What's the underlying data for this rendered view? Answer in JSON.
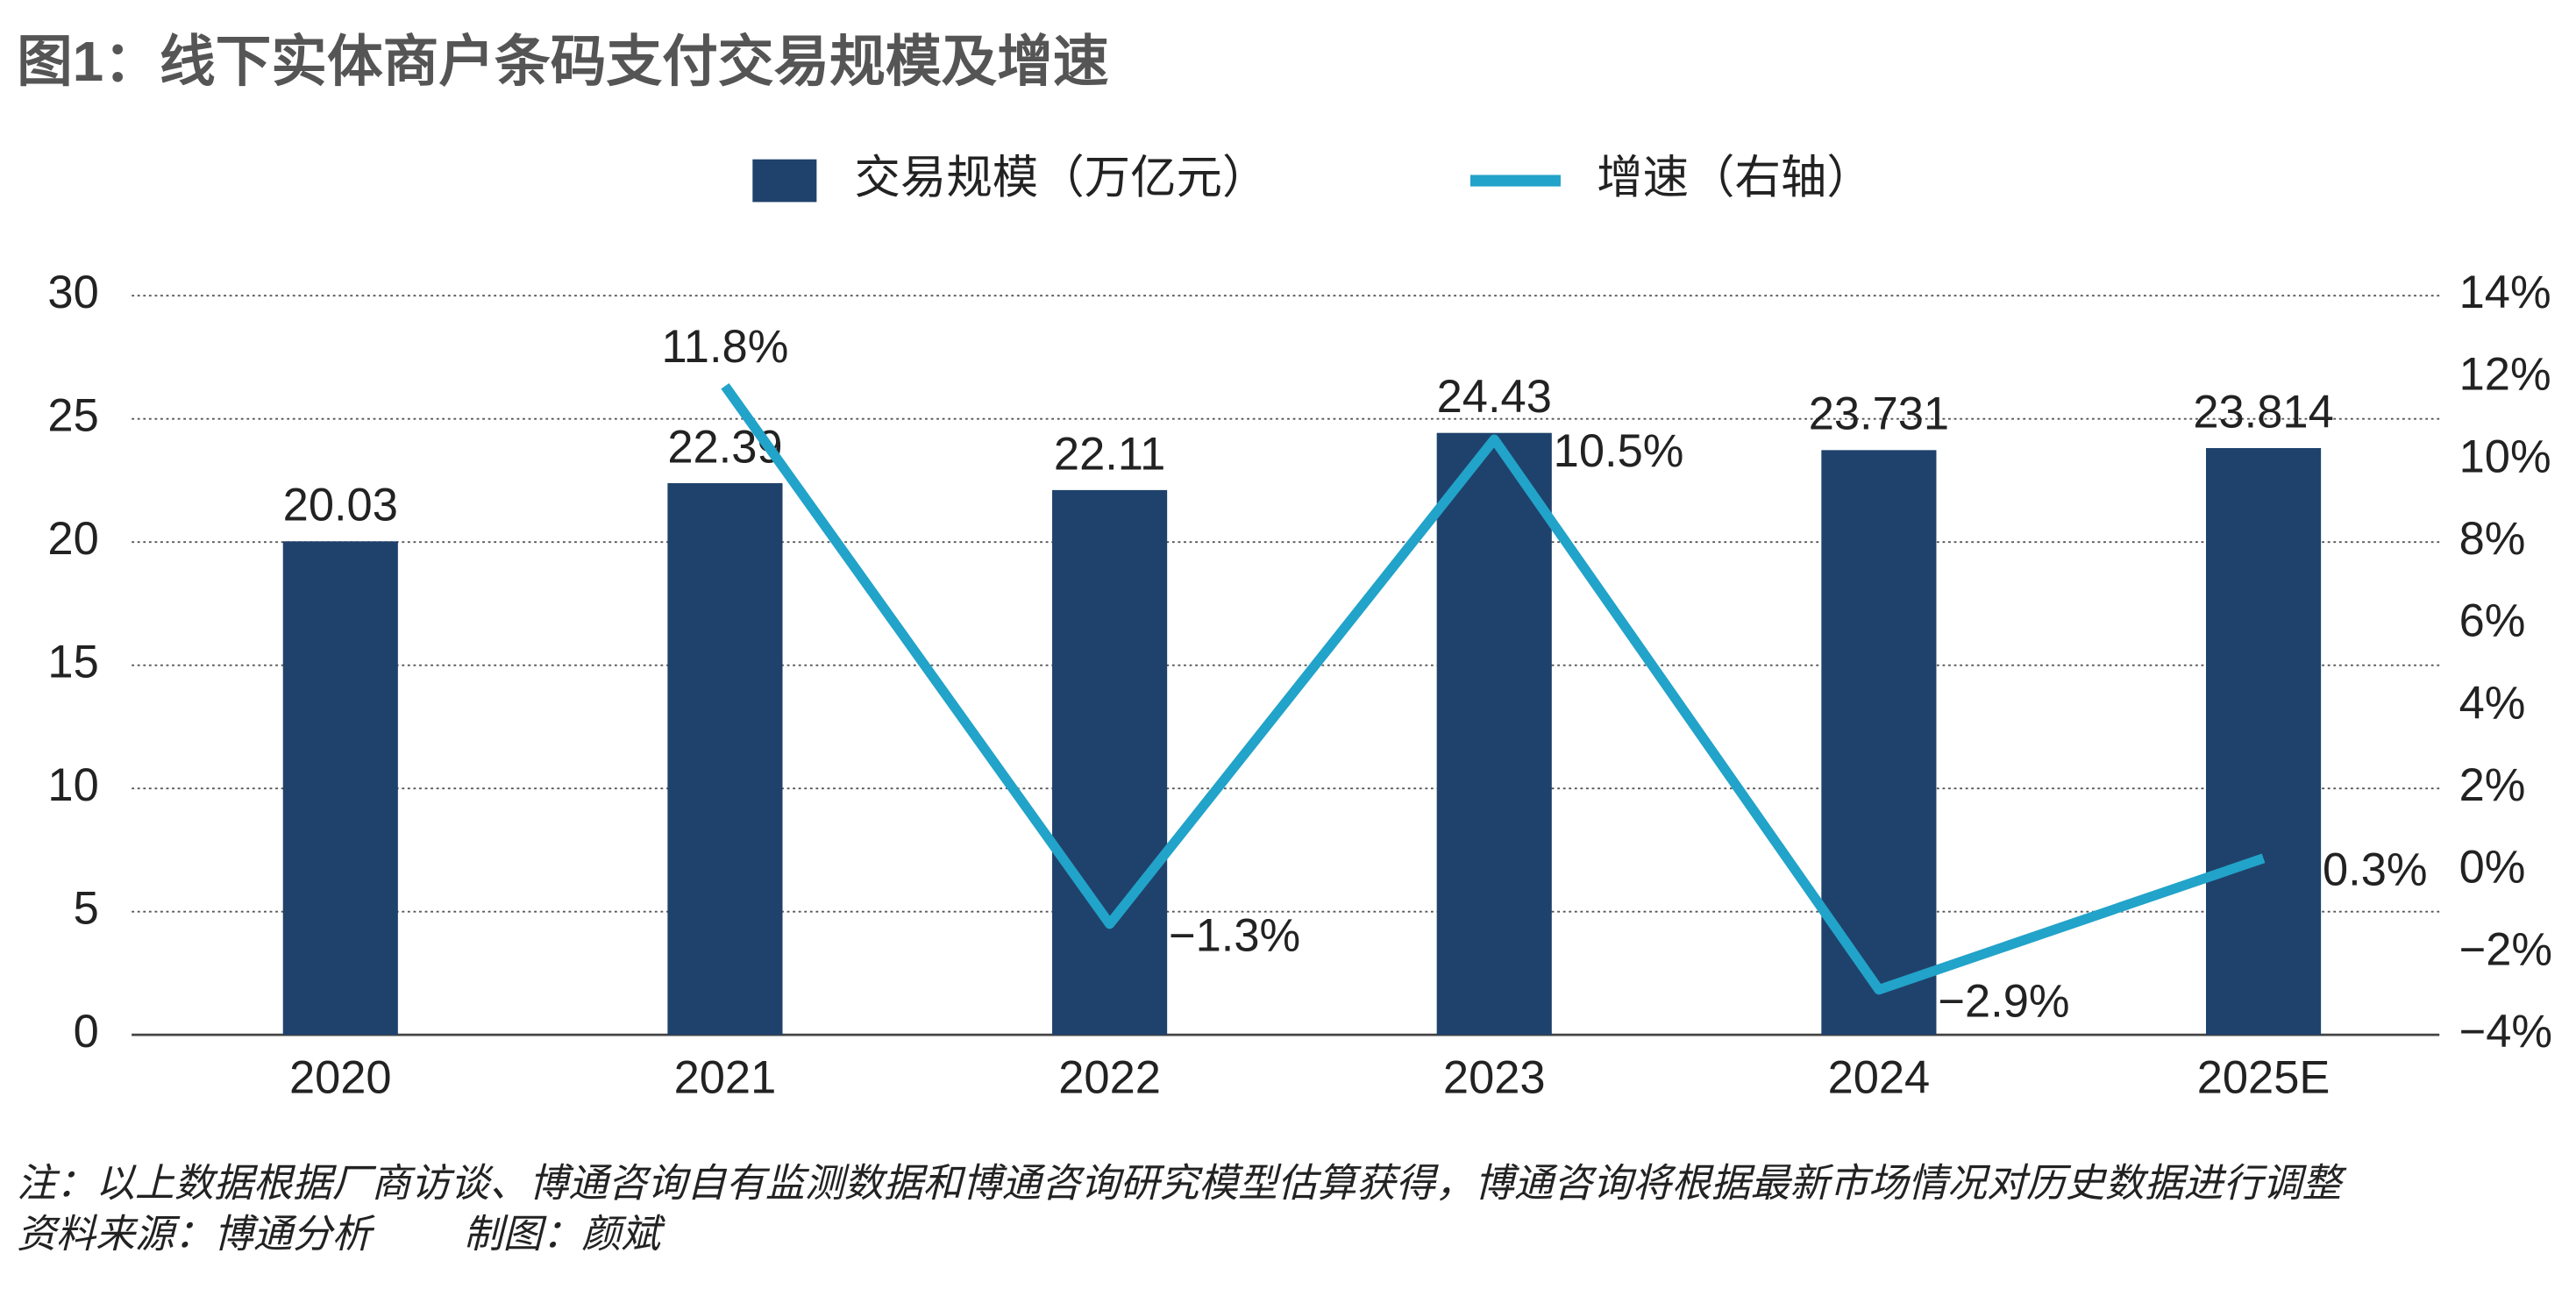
{
  "chart_data": {
    "type": "bar_line",
    "title": "图1：线下实体商户条码支付交易规模及增速",
    "categories": [
      "2020",
      "2021",
      "2022",
      "2023",
      "2024",
      "2025E"
    ],
    "series": [
      {
        "name": "交易规模（万亿元）",
        "type": "bar",
        "color": "#1f426c",
        "values": [
          20.03,
          22.39,
          22.11,
          24.43,
          23.731,
          23.814
        ]
      },
      {
        "name": "增速（右轴）",
        "type": "line",
        "axis": "y2",
        "color": "#22a3c9",
        "values": [
          null,
          11.8,
          -1.3,
          10.5,
          -2.9,
          0.3
        ],
        "value_labels": [
          null,
          "11.8%",
          "−1.3%",
          "10.5%",
          "−2.9%",
          "0.3%"
        ]
      }
    ],
    "ylim": [
      0,
      30
    ],
    "yticks": [
      0,
      5,
      10,
      15,
      20,
      25,
      30
    ],
    "y2lim": [
      -4,
      14
    ],
    "y2ticks": [
      {
        "value": -4,
        "label": "−4%"
      },
      {
        "value": -2,
        "label": "−2%"
      },
      {
        "value": 0,
        "label": "0%"
      },
      {
        "value": 2,
        "label": "2%"
      },
      {
        "value": 4,
        "label": "4%"
      },
      {
        "value": 6,
        "label": "6%"
      },
      {
        "value": 8,
        "label": "8%"
      },
      {
        "value": 10,
        "label": "10%"
      },
      {
        "value": 12,
        "label": "12%"
      },
      {
        "value": 14,
        "label": "14%"
      }
    ],
    "grid": true,
    "legend": "top",
    "notes": [
      "注：以上数据根据厂商访谈、博通咨询自有监测数据和博通咨询研究模型估算获得，博通咨询将根据最新市场情况对历史数据进行调整",
      "资料来源：博通分析",
      "制图：颜斌"
    ]
  }
}
